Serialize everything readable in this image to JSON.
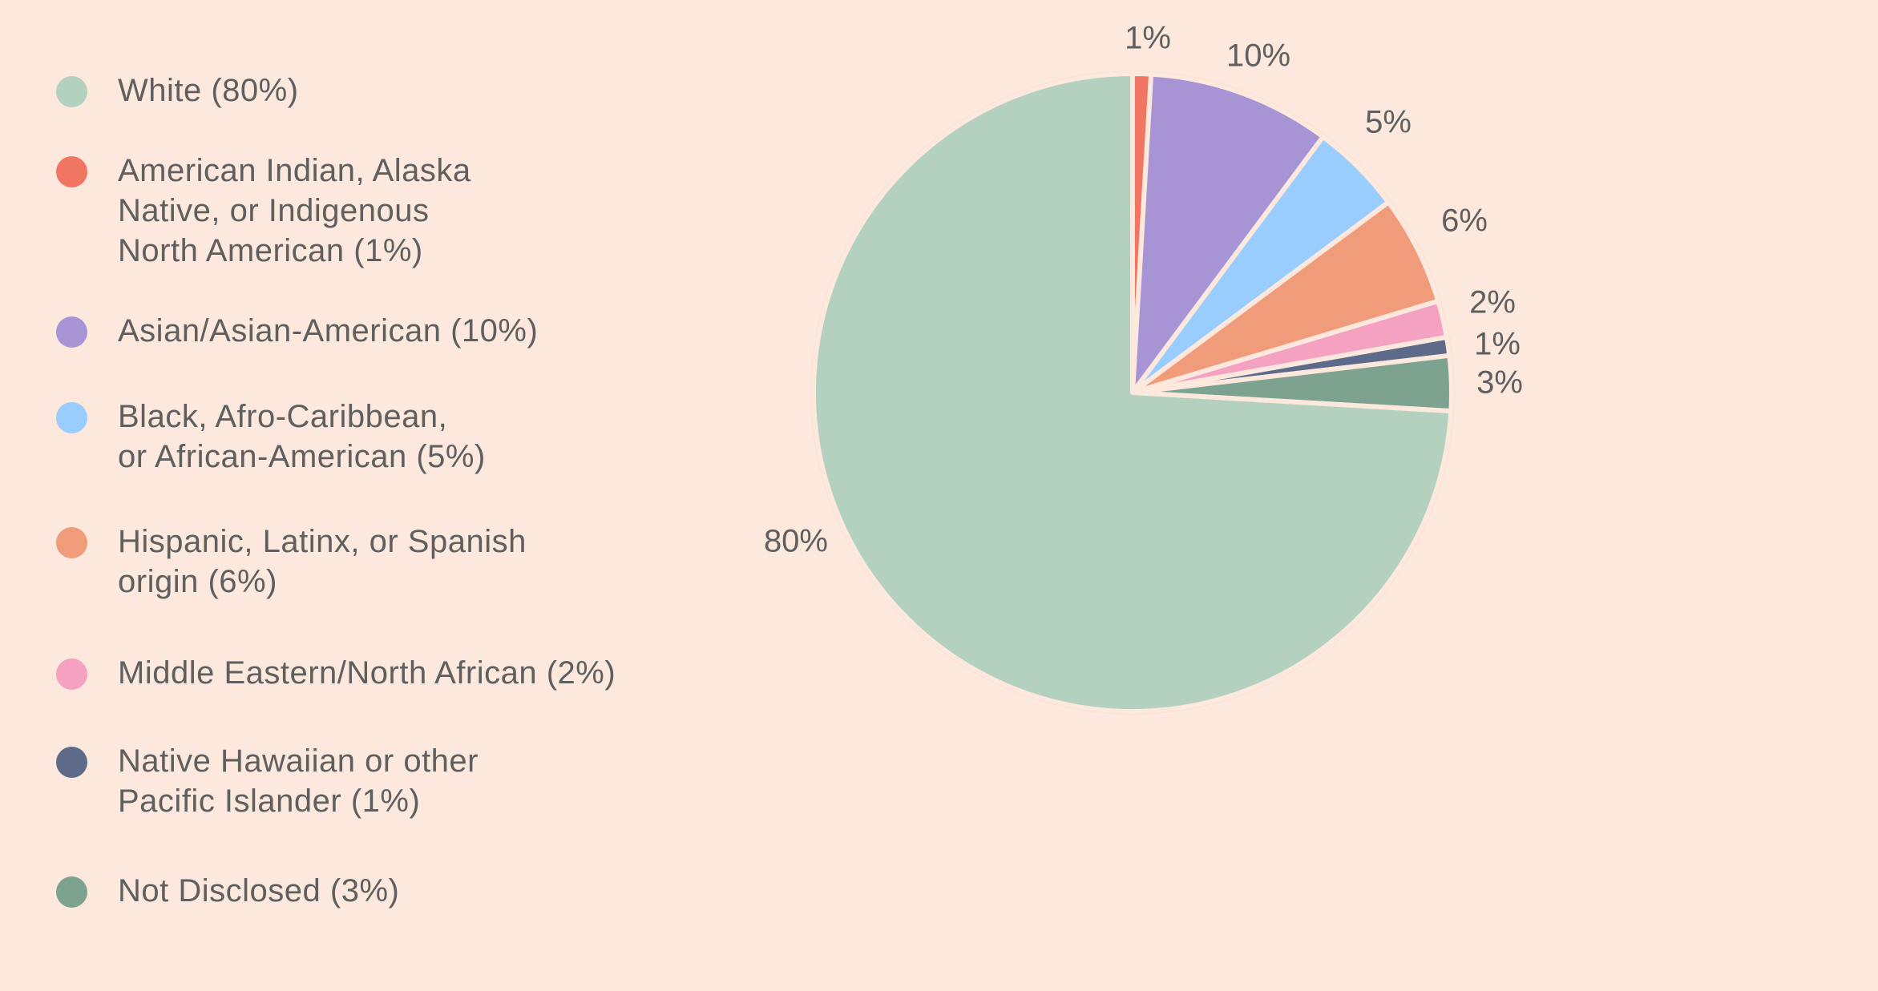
{
  "colors": {
    "background": "#fce8dc",
    "slice_stroke": "#fce8dc",
    "text": "#5f5f5f"
  },
  "chart_data": {
    "type": "pie",
    "title": "",
    "legend_position": "left",
    "slices": [
      {
        "label": "White",
        "legend_text": "White (80%)",
        "value": 80,
        "value_label": "80%",
        "color": "#b3d1be"
      },
      {
        "label": "American Indian, Alaska Native, or Indigenous North American",
        "legend_text": "American Indian, Alaska\nNative, or Indigenous\nNorth American (1%)",
        "value": 1,
        "value_label": "1%",
        "color": "#f07563"
      },
      {
        "label": "Asian/Asian-American",
        "legend_text": "Asian/Asian-American (10%)",
        "value": 10,
        "value_label": "10%",
        "color": "#a794d4"
      },
      {
        "label": "Black, Afro-Caribbean, or African-American",
        "legend_text": "Black, Afro-Caribbean,\nor African-American (5%)",
        "value": 5,
        "value_label": "5%",
        "color": "#99ccff"
      },
      {
        "label": "Hispanic, Latinx, or Spanish origin",
        "legend_text": "Hispanic, Latinx, or Spanish\norigin (6%)",
        "value": 6,
        "value_label": "6%",
        "color": "#f09c7a"
      },
      {
        "label": "Middle Eastern/North African",
        "legend_text": "Middle Eastern/North African (2%)",
        "value": 2,
        "value_label": "2%",
        "color": "#f4a1c2"
      },
      {
        "label": "Native Hawaiian or other Pacific Islander",
        "legend_text": "Native Hawaiian or other\nPacific Islander (1%)",
        "value": 1,
        "value_label": "1%",
        "color": "#5e6a8a"
      },
      {
        "label": "Not Disclosed",
        "legend_text": "Not Disclosed (3%)",
        "value": 3,
        "value_label": "3%",
        "color": "#7da390"
      }
    ]
  }
}
